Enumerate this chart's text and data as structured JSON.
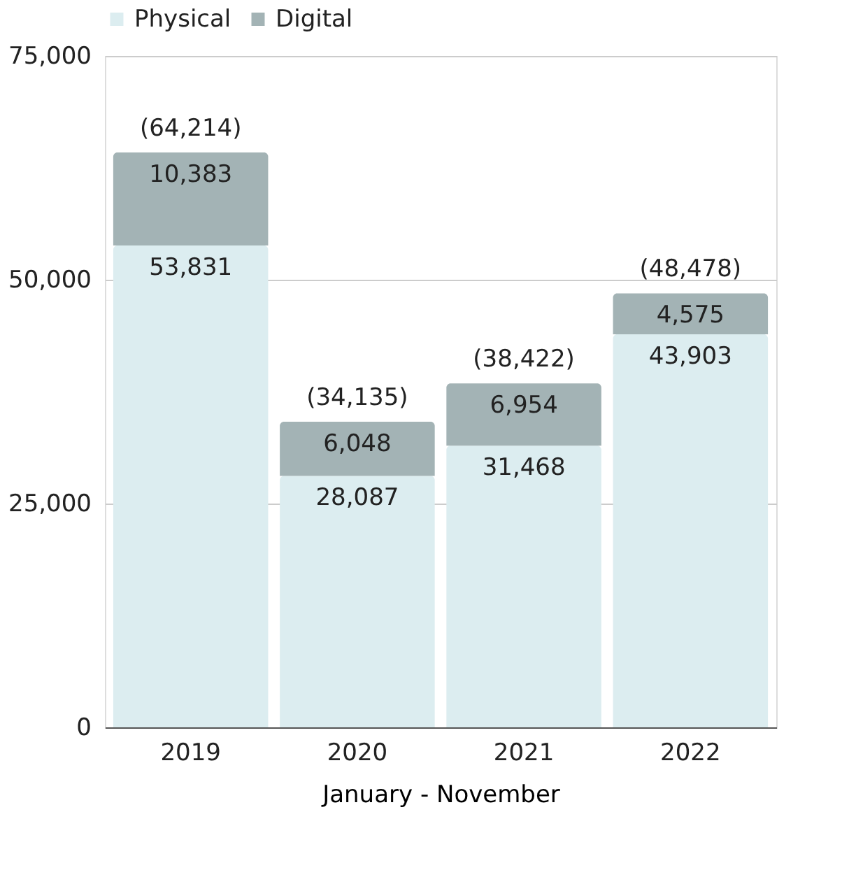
{
  "chart_data": {
    "type": "bar",
    "stacked": true,
    "xlabel": "January - November",
    "categories": [
      "2019",
      "2020",
      "2021",
      "2022"
    ],
    "series": [
      {
        "name": "Physical",
        "color": "#dcedf0",
        "values": [
          53831,
          28087,
          31468,
          43903
        ],
        "value_labels": [
          "53,831",
          "28,087",
          "31,468",
          "43,903"
        ]
      },
      {
        "name": "Digital",
        "color": "#a3b3b5",
        "values": [
          10383,
          6048,
          6954,
          4575
        ],
        "value_labels": [
          "10,383",
          "6,048",
          "6,954",
          "4,575"
        ]
      }
    ],
    "totals": [
      "(64,214)",
      "(34,135)",
      "(38,422)",
      "(48,478)"
    ],
    "ylim": [
      0,
      75000
    ],
    "yticks": [
      0,
      {
        "value": 25000,
        "label": "25,000"
      },
      {
        "value": 50000,
        "label": "50,000"
      },
      {
        "value": 75000,
        "label": "75,000"
      }
    ],
    "grid": "y",
    "legend": "top"
  }
}
